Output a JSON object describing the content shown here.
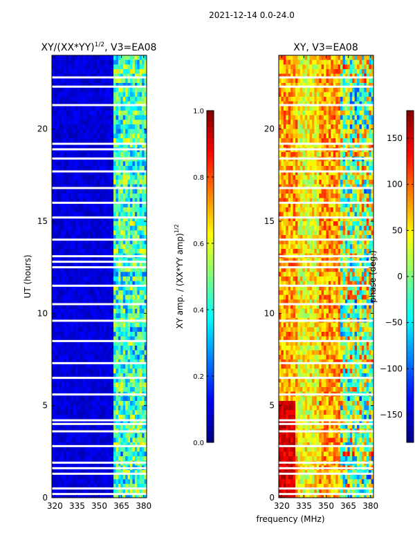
{
  "suptitle": "2021-12-14 0.0-24.0",
  "shared_xlabel": "frequency (MHz)",
  "colors": {
    "jet": [
      "#00007f",
      "#0000ff",
      "#007fff",
      "#00ffff",
      "#7fff7f",
      "#ffff00",
      "#ff7f00",
      "#ff0000",
      "#7f0000"
    ],
    "gap": "#ffffff"
  },
  "chart_data": [
    {
      "type": "heatmap",
      "title_main": "XY/(XX*YY)",
      "title_sup": "1/2",
      "title_rest": ", V3=EA08",
      "xlabel": "",
      "ylabel": "UT (hours)",
      "xlim": [
        318,
        382
      ],
      "ylim": [
        0,
        24
      ],
      "xticks": [
        320,
        335,
        350,
        365,
        380
      ],
      "yticks": [
        0,
        5,
        10,
        15,
        20
      ],
      "colorbar": {
        "label_main": "XY amp. / (XX*YY amp)",
        "label_sup": "1/2",
        "range": [
          0.0,
          1.0
        ],
        "ticks": [
          "0.0",
          "0.2",
          "0.4",
          "0.6",
          "0.8",
          "1.0"
        ],
        "tick_values": [
          0.0,
          0.2,
          0.4,
          0.6,
          0.8,
          1.0
        ]
      },
      "pattern": "low normalized amplitude (~0.1) below 360 MHz, elevated 0.3-0.6 between 360 and 380 MHz",
      "gap_hours": [
        0.2,
        0.5,
        1.3,
        1.6,
        1.9,
        2.8,
        3.6,
        4.0,
        4.2,
        5.6,
        6.5,
        7.3,
        8.5,
        9.6,
        10.5,
        11.5,
        12.5,
        12.8,
        13.1,
        14.0,
        15.2,
        16.0,
        16.8,
        17.7,
        18.4,
        18.9,
        19.2,
        21.3,
        22.3,
        22.8
      ]
    },
    {
      "type": "heatmap",
      "title_main": "XY, V3=EA08",
      "title_sup": "",
      "title_rest": "",
      "xlabel": "frequency (MHz)",
      "ylabel": "",
      "xlim": [
        318,
        382
      ],
      "ylim": [
        0,
        24
      ],
      "xticks": [
        320,
        335,
        350,
        365,
        380
      ],
      "yticks": [
        0,
        5,
        10,
        15,
        20
      ],
      "colorbar": {
        "label_main": "phase (deg.)",
        "label_sup": "",
        "range": [
          -180,
          180
        ],
        "ticks": [
          "−150",
          "−100",
          "−50",
          "0",
          "50",
          "100",
          "150"
        ],
        "tick_values": [
          -150,
          -100,
          -50,
          0,
          50,
          100,
          150
        ]
      },
      "pattern": "phase mostly 50-150 deg below 360 MHz (orange/red), mixed -150 to 50 deg above 360 MHz",
      "gap_hours": [
        0.2,
        0.5,
        1.3,
        1.6,
        1.9,
        2.8,
        3.6,
        4.0,
        4.2,
        5.6,
        6.5,
        7.3,
        8.5,
        9.6,
        10.5,
        11.5,
        12.5,
        12.8,
        13.1,
        14.0,
        15.2,
        16.0,
        16.8,
        17.7,
        18.4,
        18.9,
        19.2,
        21.3,
        22.3,
        22.8
      ]
    }
  ]
}
